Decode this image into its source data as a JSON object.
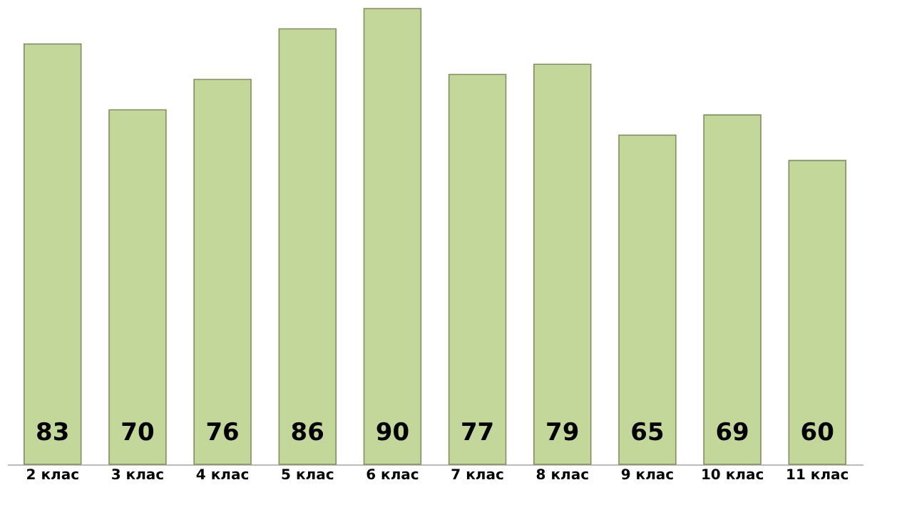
{
  "chart_data": {
    "type": "bar",
    "categories": [
      "2 клас",
      "3 клас",
      "4 клас",
      "5 клас",
      "6 клас",
      "7 клас",
      "8 клас",
      "9 клас",
      "10 клас",
      "11 клас"
    ],
    "values": [
      83,
      70,
      76,
      86,
      90,
      77,
      79,
      65,
      69,
      60
    ],
    "color": "#c4d79b",
    "data_labels": true
  }
}
